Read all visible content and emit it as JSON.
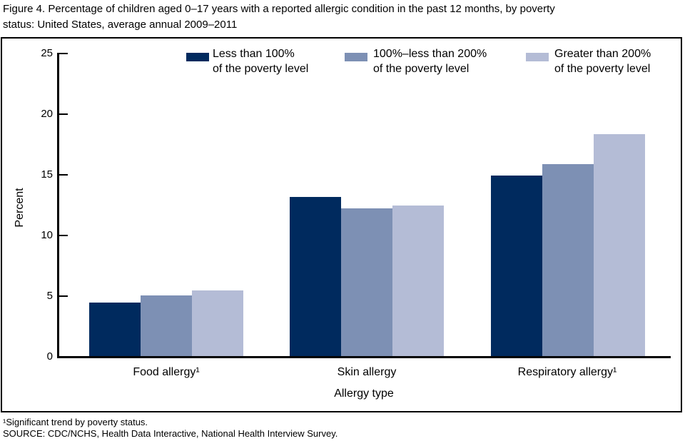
{
  "header": {
    "title_line1": "Figure 4. Percentage of children aged 0–17 years with a reported allergic condition in the past 12 months, by poverty",
    "title_line2": "status: United States, average annual 2009–2011"
  },
  "legend": {
    "items": [
      {
        "line1": "Less than 100%",
        "line2": "of the poverty level",
        "color": "#002a5e"
      },
      {
        "line1": "100%–less than 200%",
        "line2": "of the poverty level",
        "color": "#7d90b4"
      },
      {
        "line1": "Greater than 200%",
        "line2": "of the poverty level",
        "color": "#b4bcd6"
      }
    ]
  },
  "chart_data": {
    "type": "bar",
    "title": "Figure 4. Percentage of children aged 0–17 years with a reported allergic condition in the past 12 months, by poverty status: United States, average annual 2009–2011",
    "categories": [
      "Food allergy¹",
      "Skin allergy",
      "Respiratory allergy¹"
    ],
    "series": [
      {
        "name": "Less than 100% of the poverty level",
        "color": "#002a5e",
        "values": [
          4.4,
          13.1,
          14.9
        ]
      },
      {
        "name": "100%–less than 200% of the poverty level",
        "color": "#7d90b4",
        "values": [
          5.0,
          12.2,
          15.8
        ]
      },
      {
        "name": "Greater than 200% of the poverty level",
        "color": "#b4bcd6",
        "values": [
          5.4,
          12.4,
          18.3
        ]
      }
    ],
    "xlabel": "Allergy type",
    "ylabel": "Percent",
    "ylim": [
      0,
      25
    ],
    "yticks": [
      0,
      5,
      10,
      15,
      20,
      25
    ],
    "grid": false,
    "legend_position": "top"
  },
  "footnotes": {
    "note1": "¹Significant trend by poverty status.",
    "source": "SOURCE: CDC/NCHS, Health Data Interactive, National Health Interview Survey."
  },
  "colors": {
    "axis": "#000000",
    "bar_dark": "#002a5e",
    "bar_medium": "#7d90b4",
    "bar_light": "#b4bcd6"
  }
}
